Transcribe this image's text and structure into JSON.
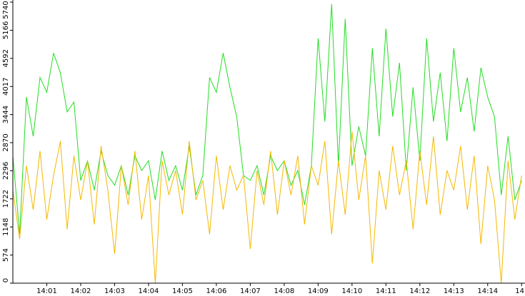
{
  "chart_data": {
    "type": "line",
    "x": [
      0,
      0.2,
      0.4,
      0.6,
      0.8,
      1,
      1.2,
      1.4,
      1.6,
      1.8,
      2,
      2.2,
      2.4,
      2.6,
      2.8,
      3,
      3.2,
      3.4,
      3.6,
      3.8,
      4,
      4.2,
      4.4,
      4.6,
      4.8,
      5,
      5.2,
      5.4,
      5.6,
      5.8,
      6,
      6.2,
      6.4,
      6.6,
      6.8,
      7,
      7.2,
      7.4,
      7.6,
      7.8,
      8,
      8.2,
      8.4,
      8.6,
      8.8,
      9,
      9.2,
      9.4,
      9.6,
      9.8,
      10,
      10.2,
      10.4,
      10.6,
      10.8,
      11,
      11.2,
      11.4,
      11.6,
      11.8,
      12,
      12.2,
      12.4,
      12.6,
      12.8,
      13,
      13.2,
      13.4,
      13.6,
      13.8,
      14,
      14.2,
      14.4,
      14.6,
      14.8,
      15
    ],
    "series": [
      {
        "color": "#22dd22",
        "values": [
          2600,
          1000,
          3800,
          3000,
          4200,
          3900,
          4700,
          4300,
          3500,
          3700,
          2100,
          2500,
          1900,
          2700,
          2200,
          2000,
          2400,
          1800,
          2600,
          2300,
          2500,
          1700,
          2700,
          2100,
          2400,
          1900,
          2800,
          1800,
          2200,
          4200,
          3900,
          4700,
          4000,
          3400,
          2200,
          2100,
          2400,
          1800,
          2600,
          2300,
          2500,
          2000,
          2300,
          1600,
          2400,
          5000,
          3300,
          5700,
          2400,
          5400,
          2400,
          3200,
          2600,
          4800,
          3000,
          5200,
          3400,
          4500,
          2300,
          4000,
          2500,
          5000,
          3300,
          4300,
          2900,
          4800,
          3500,
          4200,
          3100,
          4400,
          3800,
          3400,
          1800,
          3000,
          1700,
          2100
        ]
      },
      {
        "color": "#f5b800",
        "values": [
          1900,
          900,
          2400,
          1500,
          2700,
          1300,
          2200,
          2900,
          1100,
          2600,
          1700,
          2500,
          1200,
          2800,
          1900,
          600,
          2400,
          1600,
          2700,
          1300,
          2200,
          0,
          2500,
          1800,
          2300,
          1400,
          2900,
          1700,
          2100,
          1000,
          2600,
          1500,
          2400,
          1900,
          2200,
          700,
          2300,
          1600,
          2700,
          1400,
          2500,
          1800,
          2600,
          1200,
          2400,
          2000,
          2900,
          1000,
          2500,
          1400,
          3100,
          1700,
          2600,
          400,
          2300,
          1500,
          2800,
          1800,
          2500,
          1100,
          2700,
          1600,
          3000,
          1400,
          2300,
          1900,
          2800,
          1500,
          2600,
          800,
          2400,
          1700,
          0,
          2500,
          1300,
          2200
        ]
      }
    ],
    "xlim": [
      0,
      15.1
    ],
    "xticks": [
      {
        "value": 1,
        "label": "14:01"
      },
      {
        "value": 2,
        "label": "14:02"
      },
      {
        "value": 3,
        "label": "14:03"
      },
      {
        "value": 4,
        "label": "14:04"
      },
      {
        "value": 5,
        "label": "14:05"
      },
      {
        "value": 6,
        "label": "14:06"
      },
      {
        "value": 7,
        "label": "14:07"
      },
      {
        "value": 8,
        "label": "14:08"
      },
      {
        "value": 9,
        "label": "14:09"
      },
      {
        "value": 10,
        "label": "14:10"
      },
      {
        "value": 11,
        "label": "14:11"
      },
      {
        "value": 12,
        "label": "14:12"
      },
      {
        "value": 13,
        "label": "14:13"
      },
      {
        "value": 14,
        "label": "14:14"
      },
      {
        "value": 15,
        "label": "14"
      }
    ],
    "ylim": [
      0,
      5740
    ],
    "yticks": [
      0,
      574,
      1148,
      1722,
      2296,
      2870,
      3444,
      4017,
      4592,
      5166,
      5740
    ]
  }
}
